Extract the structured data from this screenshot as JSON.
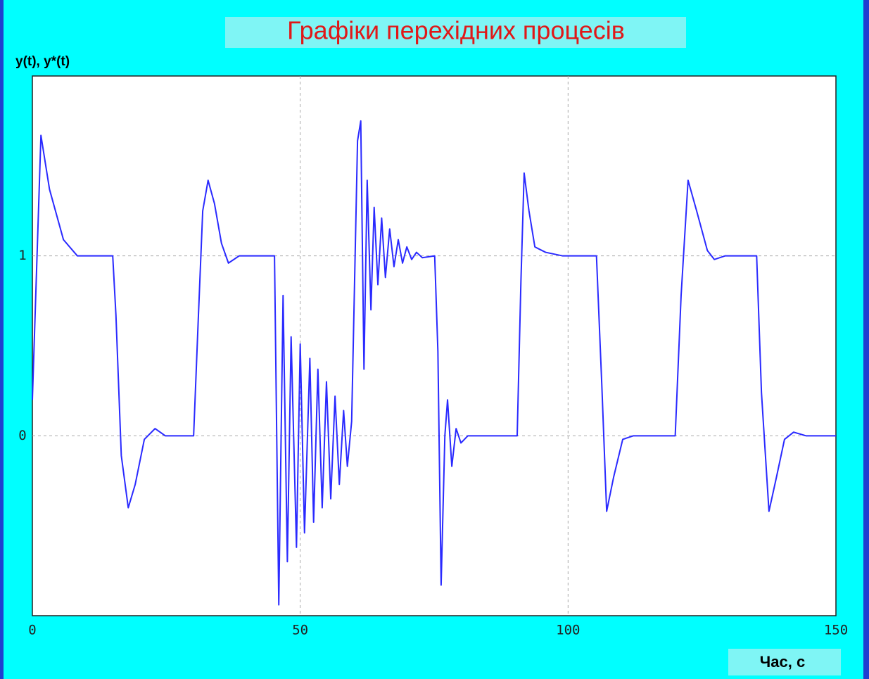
{
  "chart_data": {
    "type": "line",
    "title": "Графіки перехідних процесів",
    "y_label": "y(t), y*(t)",
    "x_label": "Час, с",
    "color": "#2a2aff",
    "grid": true,
    "xlim": [
      0,
      150
    ],
    "xticks": [
      0,
      50,
      100,
      150
    ],
    "ylim": [
      -1,
      2
    ],
    "yticks": [
      0,
      1
    ],
    "x": [
      0,
      1.6,
      3.2,
      5.8,
      8.4,
      15,
      15.6,
      16.6,
      17.9,
      19.2,
      20.9,
      22.9,
      24.8,
      30.1,
      31,
      31.8,
      32.8,
      34,
      35.3,
      36.6,
      38.6,
      44.9,
      45.2,
      46,
      46.8,
      47.6,
      48.3,
      49.3,
      50,
      50.8,
      51.8,
      52.5,
      53.3,
      54.1,
      54.9,
      55.7,
      56.5,
      57.3,
      58.1,
      58.8,
      59.6,
      60.7,
      61.3,
      61.9,
      62.5,
      63.2,
      63.8,
      64.5,
      65.2,
      65.9,
      66.7,
      67.5,
      68.3,
      69.1,
      69.9,
      70.8,
      71.7,
      72.8,
      75.1,
      75.7,
      76.3,
      77,
      77.5,
      78.3,
      79.1,
      80,
      81.3,
      90.5,
      91.2,
      91.8,
      92.7,
      93.8,
      95.8,
      99,
      105.3,
      106.3,
      107.2,
      108.5,
      110.2,
      112.2,
      120,
      121.1,
      122.4,
      124,
      126,
      127.3,
      129.3,
      135.2,
      136.1,
      137.5,
      138.9,
      140.4,
      142.1,
      144.4,
      150
    ],
    "values": [
      0.2,
      1.67,
      1.37,
      1.09,
      1,
      1,
      0.67,
      -0.11,
      -0.4,
      -0.27,
      -0.02,
      0.04,
      0,
      0,
      0.67,
      1.25,
      1.42,
      1.29,
      1.07,
      0.96,
      1,
      1,
      1,
      -0.94,
      0.78,
      -0.7,
      0.55,
      -0.62,
      0.51,
      -0.54,
      0.43,
      -0.48,
      0.37,
      -0.4,
      0.3,
      -0.35,
      0.22,
      -0.27,
      0.14,
      -0.17,
      0.08,
      1.64,
      1.75,
      0.37,
      1.42,
      0.7,
      1.27,
      0.84,
      1.21,
      0.88,
      1.15,
      0.94,
      1.09,
      0.96,
      1.05,
      0.98,
      1.02,
      0.99,
      1,
      0.47,
      -0.83,
      0,
      0.2,
      -0.17,
      0.04,
      -0.04,
      0,
      0,
      0.86,
      1.46,
      1.25,
      1.05,
      1.02,
      1,
      1,
      0.28,
      -0.42,
      -0.23,
      -0.02,
      0,
      0,
      0.78,
      1.42,
      1.25,
      1.03,
      0.98,
      1,
      1,
      0.24,
      -0.42,
      -0.23,
      -0.02,
      0.02,
      0,
      0
    ]
  }
}
